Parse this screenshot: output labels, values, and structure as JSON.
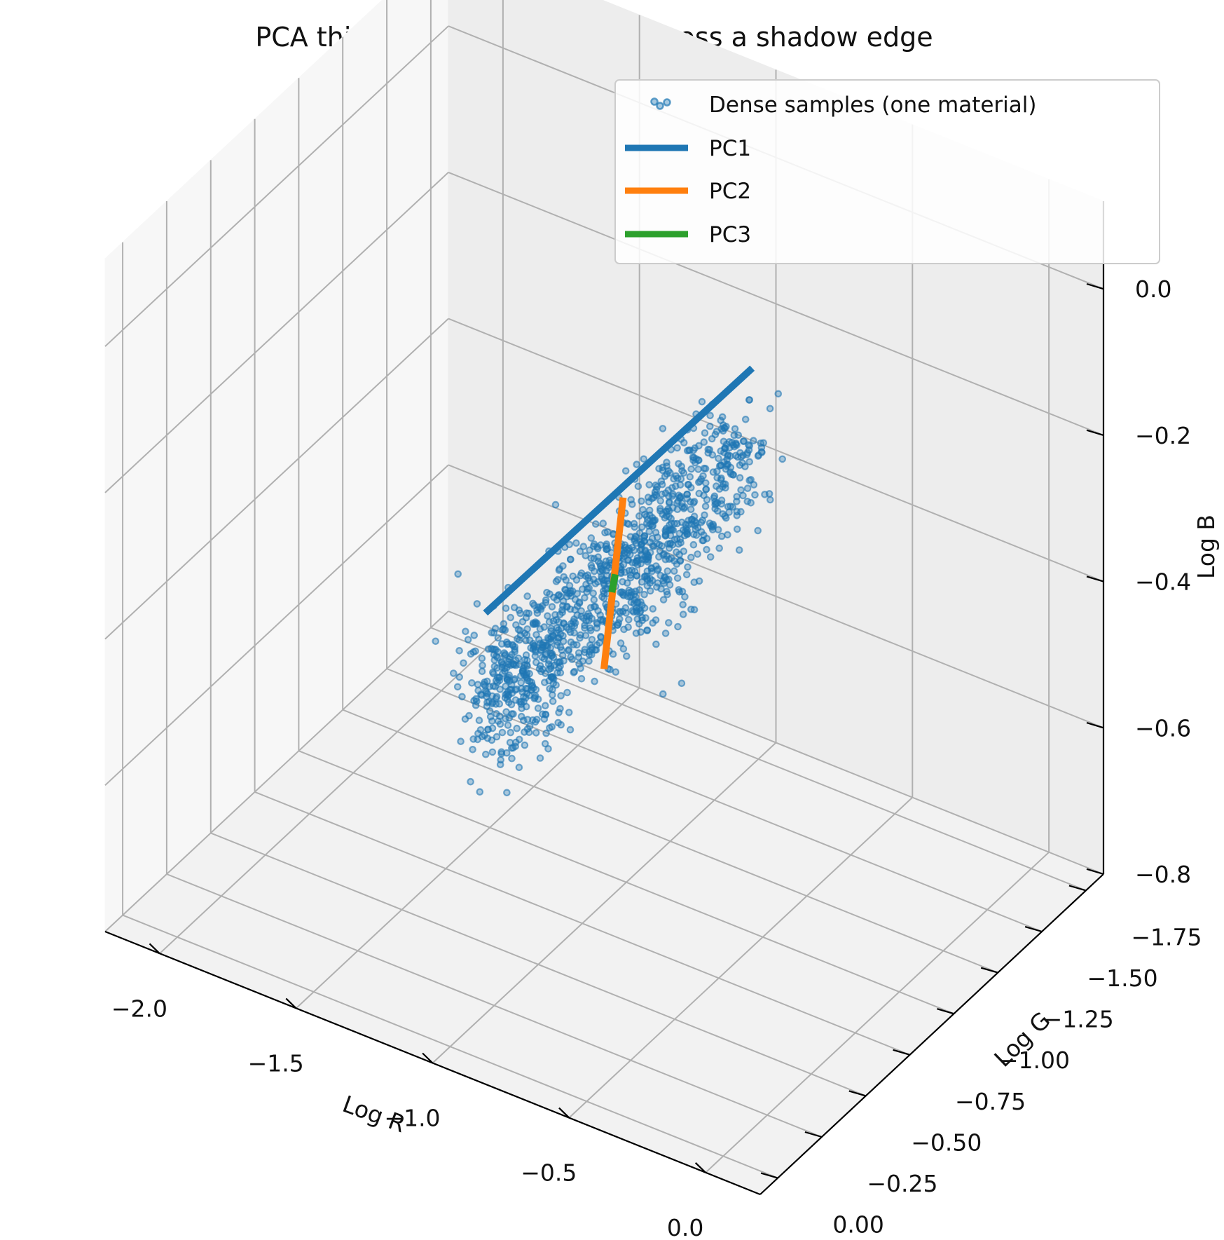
{
  "chart_data": {
    "type": "scatter",
    "title": "PCA thickness: one material across a shadow edge",
    "xlabel": "Log R",
    "ylabel": "Log G",
    "zlabel": "Log B",
    "xlim": [
      -2.2,
      0.2
    ],
    "ylim": [
      -1.85,
      0.1
    ],
    "zlim": [
      -0.8,
      0.12
    ],
    "xticks": [
      {
        "v": -2.0,
        "label": "−2.0"
      },
      {
        "v": -1.5,
        "label": "−1.5"
      },
      {
        "v": -1.0,
        "label": "−1.0"
      },
      {
        "v": -0.5,
        "label": "−0.5"
      },
      {
        "v": 0.0,
        "label": "0.0"
      }
    ],
    "yticks": [
      {
        "v": -1.75,
        "label": "−1.75"
      },
      {
        "v": -1.5,
        "label": "−1.50"
      },
      {
        "v": -1.25,
        "label": "−1.25"
      },
      {
        "v": -1.0,
        "label": "−1.00"
      },
      {
        "v": -0.75,
        "label": "−0.75"
      },
      {
        "v": -0.5,
        "label": "−0.50"
      },
      {
        "v": -0.25,
        "label": "−0.25"
      },
      {
        "v": 0.0,
        "label": "0.00"
      }
    ],
    "zticks": [
      {
        "v": -0.8,
        "label": "−0.8"
      },
      {
        "v": -0.6,
        "label": "−0.6"
      },
      {
        "v": -0.4,
        "label": "−0.4"
      },
      {
        "v": -0.2,
        "label": "−0.2"
      },
      {
        "v": 0.0,
        "label": "0.0"
      }
    ],
    "grid": true,
    "legend_position": "top-right",
    "legend": [
      {
        "name": "Dense samples (one material)",
        "kind": "marker",
        "color": "#1f77b4"
      },
      {
        "name": "PC1",
        "kind": "line",
        "color": "#1f77b4"
      },
      {
        "name": "PC2",
        "kind": "line",
        "color": "#ff7f0e"
      },
      {
        "name": "PC3",
        "kind": "line",
        "color": "#2ca02c"
      }
    ],
    "scatter_series": {
      "name": "Dense samples (one material)",
      "color": "#1f77b4",
      "count": 1200,
      "center": [
        -0.95,
        -0.85,
        -0.35
      ],
      "direction": [
        0.714,
        0.6,
        0.36
      ],
      "t_range": [
        -1.5,
        1.5
      ],
      "spread_perp": 0.06
    },
    "principal_components": [
      {
        "name": "PC1",
        "color": "#1f77b4",
        "from": [
          -2.0,
          -1.75,
          -0.75
        ],
        "to": [
          0.1,
          -0.01,
          0.29
        ]
      },
      {
        "name": "PC2",
        "color": "#ff7f0e",
        "from": [
          -0.96,
          -0.92,
          -0.25
        ],
        "to": [
          -0.94,
          -0.78,
          -0.45
        ]
      },
      {
        "name": "PC3",
        "color": "#2ca02c",
        "from": [
          -0.95,
          -0.86,
          -0.34
        ],
        "to": [
          -0.95,
          -0.84,
          -0.36
        ]
      }
    ]
  }
}
